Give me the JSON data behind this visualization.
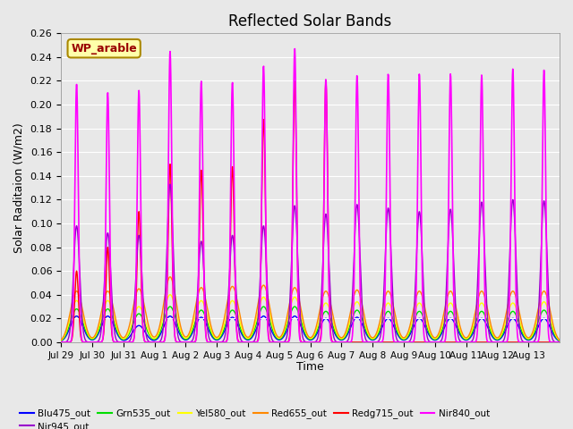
{
  "title": "Reflected Solar Bands",
  "xlabel": "Time",
  "ylabel": "Solar Raditaion (W/m2)",
  "annotation": "WP_arable",
  "ylim": [
    0.0,
    0.26
  ],
  "yticks": [
    0.0,
    0.02,
    0.04,
    0.06,
    0.08,
    0.1,
    0.12,
    0.14,
    0.16,
    0.18,
    0.2,
    0.22,
    0.24,
    0.26
  ],
  "xtick_labels": [
    "Jul 29",
    "Jul 30",
    "Jul 31",
    "Aug 1",
    "Aug 2",
    "Aug 3",
    "Aug 4",
    "Aug 5",
    "Aug 6",
    "Aug 7",
    "Aug 8",
    "Aug 9",
    "Aug 10",
    "Aug 11",
    "Aug 12",
    "Aug 13"
  ],
  "series": {
    "Blu475_out": {
      "color": "#0000ff",
      "lw": 1.0
    },
    "Grn535_out": {
      "color": "#00dd00",
      "lw": 1.0
    },
    "Yel580_out": {
      "color": "#ffff00",
      "lw": 1.0
    },
    "Red655_out": {
      "color": "#ff8800",
      "lw": 1.0
    },
    "Redg715_out": {
      "color": "#ff0000",
      "lw": 1.0
    },
    "Nir840_out": {
      "color": "#ff00ff",
      "lw": 1.2
    },
    "Nir945_out": {
      "color": "#9900cc",
      "lw": 1.0
    }
  },
  "bg_color": "#e8e8e8",
  "plot_bg": "#e8e8e8",
  "grid_color": "#ffffff",
  "nir840_peaks": [
    0.217,
    0.21,
    0.212,
    0.245,
    0.22,
    0.219,
    0.233,
    0.248,
    0.222,
    0.225,
    0.226,
    0.226,
    0.226,
    0.225,
    0.23,
    0.229
  ],
  "nir945_peaks": [
    0.098,
    0.092,
    0.09,
    0.133,
    0.085,
    0.09,
    0.098,
    0.115,
    0.108,
    0.116,
    0.113,
    0.11,
    0.112,
    0.118,
    0.12,
    0.119
  ],
  "redg715_peaks": [
    0.06,
    0.08,
    0.11,
    0.15,
    0.145,
    0.148,
    0.188,
    0.22,
    0.22,
    0.0,
    0.0,
    0.0,
    0.0,
    0.0,
    0.0,
    0.0
  ],
  "red655_peaks": [
    0.043,
    0.043,
    0.045,
    0.055,
    0.046,
    0.047,
    0.048,
    0.046,
    0.043,
    0.044,
    0.043,
    0.043,
    0.043,
    0.043,
    0.043,
    0.043
  ],
  "yel580_peaks": [
    0.035,
    0.035,
    0.03,
    0.04,
    0.035,
    0.035,
    0.038,
    0.038,
    0.033,
    0.034,
    0.033,
    0.033,
    0.033,
    0.033,
    0.033,
    0.034
  ],
  "grn535_peaks": [
    0.028,
    0.028,
    0.024,
    0.03,
    0.027,
    0.027,
    0.03,
    0.03,
    0.026,
    0.027,
    0.026,
    0.026,
    0.026,
    0.026,
    0.026,
    0.027
  ],
  "blu475_peaks": [
    0.022,
    0.022,
    0.014,
    0.022,
    0.021,
    0.021,
    0.022,
    0.022,
    0.02,
    0.021,
    0.02,
    0.02,
    0.02,
    0.02,
    0.02,
    0.02
  ]
}
